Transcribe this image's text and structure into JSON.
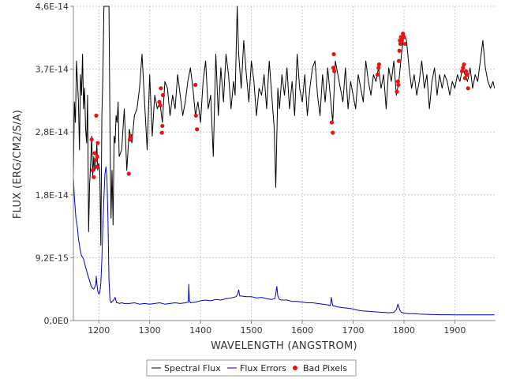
{
  "colors": {
    "spectral_flux": "#000000",
    "flux_errors": "#0000cc",
    "bad_pixels": "#ee1111",
    "gridline": "#cccccc"
  },
  "chart_data": {
    "type": "line",
    "xlabel": "WAVELENGTH (ANGSTROM)",
    "ylabel": "FLUX (ERG/CM2/S/A)",
    "xlim": [
      1150,
      1980
    ],
    "ylim": [
      0,
      4.6e-14
    ],
    "x_ticks": [
      1200,
      1300,
      1400,
      1500,
      1600,
      1700,
      1800,
      1900
    ],
    "x_tick_labels": [
      "1200",
      "1300",
      "1400",
      "1500",
      "1600",
      "1700",
      "1800",
      "1900"
    ],
    "y_ticks": [
      0,
      9.2e-15,
      1.84e-14,
      2.76e-14,
      3.68e-14,
      4.6e-14
    ],
    "y_tick_labels": [
      "0,0E0",
      "9,2E-15",
      "1,8E-14",
      "2,8E-14",
      "3,7E-14",
      "4,6E-14"
    ],
    "grid": true,
    "legend_position": "bottom-center",
    "series": [
      {
        "name": "Spectral Flux",
        "style": "line",
        "color": "#000000",
        "x": [
          1150,
          1152,
          1154,
          1156,
          1158,
          1160,
          1162,
          1164,
          1166,
          1168,
          1170,
          1172,
          1174,
          1176,
          1178,
          1180,
          1182,
          1184,
          1186,
          1188,
          1190,
          1192,
          1194,
          1196,
          1198,
          1200,
          1202,
          1204,
          1206,
          1208,
          1210,
          1212,
          1214,
          1216,
          1218,
          1220,
          1222,
          1224,
          1226,
          1228,
          1230,
          1232,
          1234,
          1236,
          1238,
          1240,
          1245,
          1250,
          1255,
          1260,
          1265,
          1270,
          1275,
          1280,
          1285,
          1290,
          1295,
          1300,
          1305,
          1310,
          1315,
          1320,
          1325,
          1330,
          1335,
          1340,
          1345,
          1350,
          1355,
          1360,
          1365,
          1370,
          1375,
          1380,
          1385,
          1390,
          1395,
          1400,
          1405,
          1410,
          1415,
          1420,
          1425,
          1430,
          1435,
          1440,
          1445,
          1450,
          1455,
          1460,
          1465,
          1468,
          1472,
          1475,
          1480,
          1485,
          1490,
          1495,
          1500,
          1505,
          1510,
          1515,
          1520,
          1525,
          1530,
          1535,
          1540,
          1545,
          1548,
          1552,
          1555,
          1560,
          1565,
          1570,
          1575,
          1580,
          1585,
          1590,
          1595,
          1600,
          1605,
          1610,
          1615,
          1620,
          1625,
          1630,
          1635,
          1640,
          1645,
          1650,
          1655,
          1660,
          1665,
          1670,
          1675,
          1680,
          1685,
          1690,
          1695,
          1700,
          1705,
          1710,
          1715,
          1720,
          1725,
          1730,
          1735,
          1740,
          1745,
          1750,
          1755,
          1760,
          1765,
          1770,
          1775,
          1780,
          1785,
          1790,
          1795,
          1800,
          1805,
          1810,
          1815,
          1820,
          1825,
          1830,
          1835,
          1840,
          1845,
          1850,
          1855,
          1860,
          1865,
          1870,
          1875,
          1880,
          1885,
          1890,
          1895,
          1900,
          1905,
          1910,
          1915,
          1920,
          1925,
          1930,
          1935,
          1940,
          1945,
          1950,
          1955,
          1960,
          1965,
          1970,
          1975,
          1978
        ],
        "y": [
          2.1e-14,
          3.2e-14,
          2.9e-14,
          3.8e-14,
          3.5e-14,
          3.2e-14,
          2.5e-14,
          3.6e-14,
          3.3e-14,
          3.9e-14,
          3.1e-14,
          3.4e-14,
          2.8e-14,
          2.6e-14,
          3.3e-14,
          1.3e-14,
          2e-14,
          2.3e-14,
          2.7e-14,
          2.1e-14,
          2.4e-14,
          2.2e-14,
          2.3e-14,
          2.6e-14,
          2.2e-14,
          2.3e-14,
          2.2e-14,
          1.1e-14,
          3e-14,
          3.6e-14,
          4.6e-14,
          4.6e-14,
          4.6e-14,
          4.6e-14,
          4.6e-14,
          4.6e-14,
          2.8e-14,
          1.5e-14,
          2.2e-14,
          1.4e-14,
          2.7e-14,
          2.6e-14,
          3e-14,
          2.9e-14,
          3.2e-14,
          2.4e-14,
          2.5e-14,
          3.1e-14,
          2.2e-14,
          2.8e-14,
          2.6e-14,
          3e-14,
          3.1e-14,
          3.4e-14,
          3.9e-14,
          3.2e-14,
          2.5e-14,
          3.6e-14,
          2.7e-14,
          3.3e-14,
          3.1e-14,
          3.2e-14,
          2.9e-14,
          3.5e-14,
          3.4e-14,
          3e-14,
          3.3e-14,
          3.1e-14,
          3.6e-14,
          3.3e-14,
          3e-14,
          3.2e-14,
          3.5e-14,
          3.7e-14,
          3.4e-14,
          3e-14,
          3.2e-14,
          2.9e-14,
          3.5e-14,
          3.8e-14,
          3.1e-14,
          3.3e-14,
          2.4e-14,
          3.9e-14,
          3e-14,
          3.7e-14,
          3.2e-14,
          3.9e-14,
          3.6e-14,
          3.1e-14,
          3.5e-14,
          3.3e-14,
          4.6e-14,
          3.9e-14,
          3.4e-14,
          4.1e-14,
          3.6e-14,
          3.2e-14,
          3.8e-14,
          3.5e-14,
          3e-14,
          3.4e-14,
          3.3e-14,
          3.6e-14,
          3.1e-14,
          3.8e-14,
          3.3e-14,
          2.8e-14,
          1.95e-14,
          3.4e-14,
          3.1e-14,
          3.6e-14,
          3.3e-14,
          3.7e-14,
          3.1e-14,
          3.5e-14,
          3e-14,
          3.9e-14,
          3.4e-14,
          3.2e-14,
          3.6e-14,
          3e-14,
          3.4e-14,
          3.7e-14,
          3.8e-14,
          3.3e-14,
          3e-14,
          3.6e-14,
          3.2e-14,
          3.7e-14,
          3.3e-14,
          2.9e-14,
          3.8e-14,
          3.6e-14,
          3.4e-14,
          3.2e-14,
          3.7e-14,
          3.1e-14,
          3.5e-14,
          3.3e-14,
          3.1e-14,
          3.6e-14,
          3.4e-14,
          3.2e-14,
          3.8e-14,
          3.5e-14,
          3.3e-14,
          3.6e-14,
          3.5e-14,
          3.7e-14,
          3.4e-14,
          3.6e-14,
          3.1e-14,
          3.7e-14,
          3.5e-14,
          3.8e-14,
          3.3e-14,
          3.5e-14,
          3.9e-14,
          4.2e-14,
          4.1e-14,
          3.7e-14,
          3.4e-14,
          3.6e-14,
          3.3e-14,
          3.5e-14,
          3.8e-14,
          3.4e-14,
          3.6e-14,
          3.1e-14,
          3.5e-14,
          3.7e-14,
          3.3e-14,
          3.6e-14,
          3.4e-14,
          3.6e-14,
          3.5e-14,
          3.3e-14,
          3.5e-14,
          3.4e-14,
          3.6e-14,
          3.5e-14,
          3.7e-14,
          3.6e-14,
          3.5e-14,
          3.7e-14,
          3.4e-14,
          3.6e-14,
          3.5e-14,
          3.8e-14,
          4.1e-14,
          3.7e-14,
          3.5e-14,
          3.4e-14,
          3.5e-14,
          3.4e-14
        ]
      },
      {
        "name": "Flux Errors",
        "style": "line",
        "color": "#0000cc",
        "x": [
          1150,
          1152,
          1155,
          1158,
          1160,
          1163,
          1166,
          1170,
          1174,
          1178,
          1182,
          1185,
          1188,
          1190,
          1192,
          1194,
          1195,
          1196,
          1198,
          1200,
          1202,
          1204,
          1206,
          1208,
          1210,
          1212,
          1214,
          1216,
          1218,
          1220,
          1222,
          1224,
          1226,
          1228,
          1230,
          1232,
          1235,
          1238,
          1240,
          1245,
          1250,
          1260,
          1270,
          1280,
          1290,
          1300,
          1310,
          1320,
          1330,
          1340,
          1350,
          1360,
          1370,
          1376,
          1377,
          1378,
          1380,
          1390,
          1400,
          1410,
          1420,
          1430,
          1440,
          1450,
          1460,
          1470,
          1473,
          1475,
          1477,
          1480,
          1490,
          1500,
          1510,
          1520,
          1530,
          1540,
          1546,
          1548,
          1550,
          1552,
          1555,
          1560,
          1570,
          1580,
          1590,
          1600,
          1610,
          1620,
          1630,
          1640,
          1650,
          1655,
          1656,
          1657,
          1660,
          1670,
          1680,
          1690,
          1700,
          1710,
          1720,
          1730,
          1740,
          1750,
          1760,
          1770,
          1780,
          1785,
          1788,
          1790,
          1792,
          1795,
          1800,
          1810,
          1820,
          1830,
          1840,
          1850,
          1860,
          1870,
          1880,
          1890,
          1900,
          1910,
          1920,
          1930,
          1940,
          1950,
          1960,
          1970,
          1978
        ],
        "y": [
          2.1e-14,
          1.8e-14,
          1.5e-14,
          1.35e-14,
          1.2e-14,
          1.05e-14,
          9.5e-15,
          9e-15,
          7.8e-15,
          6.8e-15,
          5.8e-15,
          5e-15,
          4.7e-15,
          4.6e-15,
          4.9e-15,
          5.3e-15,
          6.5e-15,
          5.5e-15,
          4.3e-15,
          3.9e-15,
          4.1e-15,
          5.5e-15,
          9e-15,
          1.4e-14,
          1.8e-14,
          2.15e-14,
          2.25e-14,
          2.1e-14,
          1.5e-14,
          6e-15,
          3e-15,
          2.6e-15,
          2.8e-15,
          2.9e-15,
          3.1e-15,
          3.4e-15,
          2.6e-15,
          2.6e-15,
          2.5e-15,
          2.6e-15,
          2.5e-15,
          2.5e-15,
          2.6e-15,
          2.4e-15,
          2.5e-15,
          2.4e-15,
          2.5e-15,
          2.6e-15,
          2.4e-15,
          2.5e-15,
          2.6e-15,
          2.5e-15,
          2.6e-15,
          2.7e-15,
          5.3e-15,
          2.9e-15,
          2.6e-15,
          2.7e-15,
          2.9e-15,
          3e-15,
          2.9e-15,
          3.1e-15,
          3e-15,
          3.2e-15,
          3.3e-15,
          3.5e-15,
          3.9e-15,
          4.5e-15,
          3.6e-15,
          3.6e-15,
          3.5e-15,
          3.5e-15,
          3.3e-15,
          3.4e-15,
          3.2e-15,
          3.1e-15,
          3.2e-15,
          3.9e-15,
          5e-15,
          3.6e-15,
          3.1e-15,
          3e-15,
          3e-15,
          2.8e-15,
          2.8e-15,
          2.7e-15,
          2.6e-15,
          2.6e-15,
          2.5e-15,
          2.4e-15,
          2.3e-15,
          2.2e-15,
          2.5e-15,
          3.4e-15,
          2.2e-15,
          2e-15,
          1.9e-15,
          1.8e-15,
          1.7e-15,
          1.5e-15,
          1.4e-15,
          1.35e-15,
          1.3e-15,
          1.25e-15,
          1.2e-15,
          1.15e-15,
          1.2e-15,
          1.6e-15,
          2.4e-15,
          2e-15,
          1.5e-15,
          1.2e-15,
          1.1e-15,
          1e-15,
          1e-15,
          9.5e-16,
          9.2e-16,
          9e-16,
          8.8e-16,
          8.6e-16,
          8.5e-16,
          8.5e-16,
          8.4e-16,
          8.4e-16,
          8.4e-16,
          8.3e-16,
          8.3e-16,
          8.3e-16,
          8.3e-16,
          8.3e-16,
          8.3e-16
        ]
      },
      {
        "name": "Bad Pixels",
        "style": "points",
        "color": "#ee1111",
        "x": [
          1186,
          1188,
          1190,
          1192,
          1194,
          1195,
          1196,
          1197,
          1198,
          1259,
          1261,
          1263,
          1319,
          1321,
          1322,
          1324,
          1325,
          1326,
          1390,
          1391,
          1393,
          1658,
          1660,
          1661,
          1662,
          1663,
          1748,
          1750,
          1751,
          1786,
          1788,
          1789,
          1790,
          1791,
          1792,
          1793,
          1794,
          1796,
          1798,
          1800,
          1802,
          1914,
          1916,
          1918,
          1920,
          1922,
          1924,
          1926
        ],
        "y": [
          2.65e-14,
          2.2e-14,
          2.1e-14,
          2.45e-14,
          2.35e-14,
          3e-14,
          2.25e-14,
          2.4e-14,
          2.6e-14,
          2.15e-14,
          2.65e-14,
          2.7e-14,
          3.2e-14,
          3.15e-14,
          3.4e-14,
          2.75e-14,
          2.85e-14,
          3.3e-14,
          3.45e-14,
          3e-14,
          2.8e-14,
          2.9e-14,
          2.75e-14,
          3.7e-14,
          3.9e-14,
          3.65e-14,
          3.6e-14,
          3.7e-14,
          3.75e-14,
          3.35e-14,
          3.5e-14,
          3.45e-14,
          3.8e-14,
          3.95e-14,
          4.1e-14,
          4.05e-14,
          4.15e-14,
          4.1e-14,
          4.2e-14,
          4.15e-14,
          4.05e-14,
          3.65e-14,
          3.7e-14,
          3.75e-14,
          3.55e-14,
          3.65e-14,
          3.6e-14,
          3.4e-14
        ]
      }
    ],
    "legend": [
      {
        "label": "Spectral Flux",
        "marker": "line"
      },
      {
        "label": "Flux Errors",
        "marker": "line"
      },
      {
        "label": "Bad Pixels",
        "marker": "dot"
      }
    ]
  }
}
